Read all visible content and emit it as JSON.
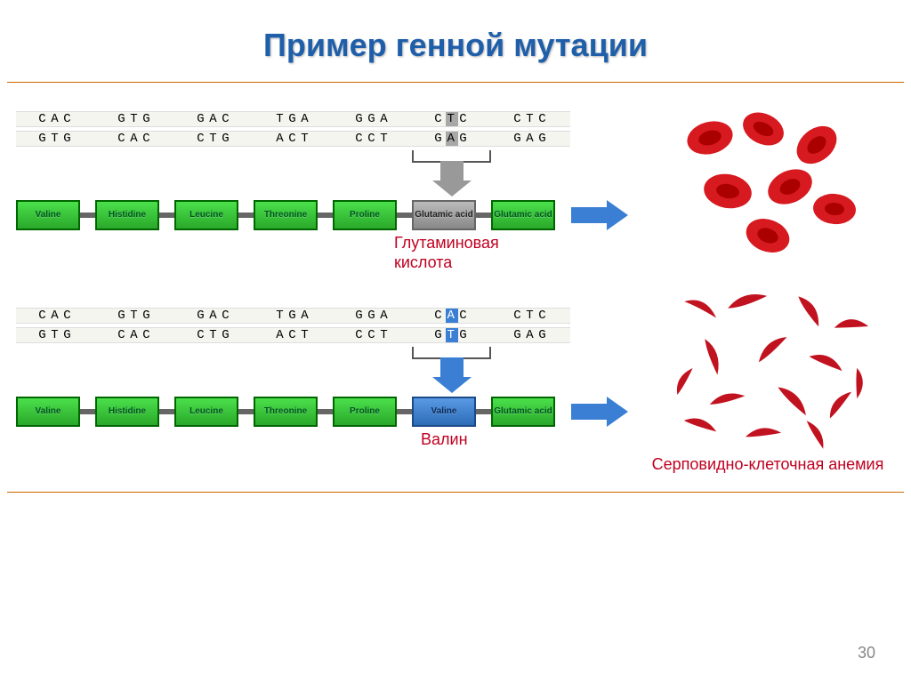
{
  "title": "Пример генной мутации",
  "page_number": "30",
  "colors": {
    "title": "#1f5faa",
    "frame_border": "#cc6600",
    "aa_green_fill_top": "#4be04b",
    "aa_green_fill_bottom": "#2aa82a",
    "aa_green_border": "#006600",
    "aa_gray_fill_top": "#bbbbbb",
    "aa_gray_fill_bottom": "#888888",
    "aa_gray_border": "#666666",
    "aa_blue_fill_top": "#5a9ae4",
    "aa_blue_fill_bottom": "#2d6db8",
    "aa_blue_border": "#1a4a88",
    "arrow_blue": "#3a7fd4",
    "arrow_gray": "#999999",
    "codon_bg": "#f5f5f0",
    "caption_red": "#c00020",
    "rbc_red": "#d71920",
    "sickle_red": "#c1121f"
  },
  "normal": {
    "dna_top": [
      "CAC",
      "GTG",
      "GAC",
      "TGA",
      "GGA",
      "CTC",
      "CTC"
    ],
    "dna_bottom": [
      "GTG",
      "CAC",
      "CTG",
      "ACT",
      "CCT",
      "GAG",
      "GAG"
    ],
    "mutation_index": 5,
    "mutation_top_letter_index": 1,
    "mutation_bottom_letter_index": 1,
    "mutation_box_style": "gray",
    "amino_acids": [
      {
        "label": "Valine",
        "style": "green"
      },
      {
        "label": "Histidine",
        "style": "green"
      },
      {
        "label": "Leucine",
        "style": "green"
      },
      {
        "label": "Threonine",
        "style": "green"
      },
      {
        "label": "Proline",
        "style": "green"
      },
      {
        "label": "Glutamic acid",
        "style": "gray"
      },
      {
        "label": "Glutamic acid",
        "style": "green"
      }
    ],
    "arrow_style": "gray",
    "caption": "Глутаминовая",
    "caption_line2": "кислота",
    "result_label": ""
  },
  "mutant": {
    "dna_top": [
      "CAC",
      "GTG",
      "GAC",
      "TGA",
      "GGA",
      "CAC",
      "CTC"
    ],
    "dna_bottom": [
      "GTG",
      "CAC",
      "CTG",
      "ACT",
      "CCT",
      "GTG",
      "GAG"
    ],
    "mutation_index": 5,
    "mutation_top_letter_index": 1,
    "mutation_bottom_letter_index": 1,
    "mutation_box_style": "blue",
    "amino_acids": [
      {
        "label": "Valine",
        "style": "green"
      },
      {
        "label": "Histidine",
        "style": "green"
      },
      {
        "label": "Leucine",
        "style": "green"
      },
      {
        "label": "Threonine",
        "style": "green"
      },
      {
        "label": "Proline",
        "style": "green"
      },
      {
        "label": "Valine",
        "style": "blue"
      },
      {
        "label": "Glutamic acid",
        "style": "green"
      }
    ],
    "arrow_style": "blue",
    "caption": "Валин",
    "caption_line2": "",
    "result_label": "Серповидно-клеточная анемия"
  }
}
